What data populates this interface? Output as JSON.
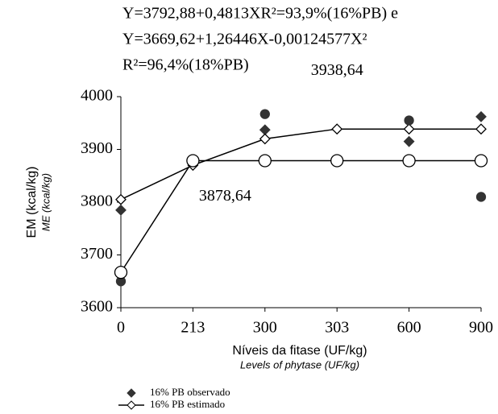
{
  "chart_data": {
    "type": "line",
    "title_lines": [
      "Y=3792,88+0,4813XR²=93,9%(16%PB) e",
      "Y=3669,62+1,26446X-0,00124577X²",
      "R²=96,4%(18%PB)"
    ],
    "y_label": "EM (kcal/kg)",
    "y_label_en": "ME (kcal/kg)",
    "x_label": "Níveis da fitase (UF/kg)",
    "x_label_en": "Levels of phytase (UF/kg)",
    "categories": [
      "0",
      "213",
      "300",
      "303",
      "600",
      "900"
    ],
    "ylim": [
      3600,
      4000
    ],
    "yticks": [
      3600,
      3700,
      3800,
      3900,
      4000
    ],
    "series": [
      {
        "name": "16% PB observado",
        "marker": "diamond",
        "filled": true,
        "line": false,
        "color": "#333333",
        "values": [
          3785,
          null,
          3937,
          null,
          3915,
          3962
        ]
      },
      {
        "name": "16% PB estimado",
        "marker": "diamond",
        "filled": false,
        "line": true,
        "color": "#000000",
        "values": [
          3805,
          3870,
          3920,
          3938.64,
          3938.64,
          3938.64
        ]
      },
      {
        "marker": "circle",
        "filled": true,
        "line": false,
        "color": "#333333",
        "values": [
          3650,
          null,
          3967,
          null,
          3955,
          3810
        ]
      },
      {
        "marker": "circle",
        "filled": false,
        "line": true,
        "color": "#000000",
        "values": [
          3667,
          3878.64,
          3878.64,
          3878.64,
          3878.64,
          3878.64
        ]
      }
    ],
    "annotations": [
      {
        "text": "3938,64",
        "category": 3,
        "value": 3938.64
      },
      {
        "text": "3878,64",
        "category": 1,
        "value": 3878.64
      }
    ]
  }
}
